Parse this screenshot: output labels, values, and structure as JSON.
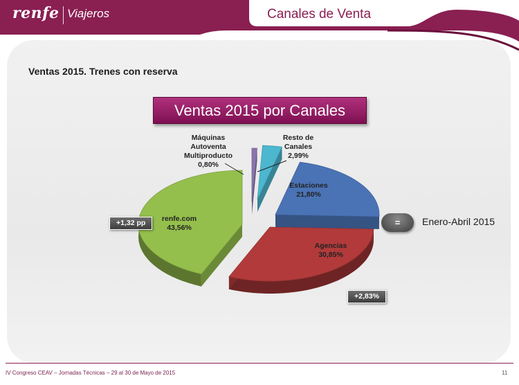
{
  "header": {
    "brand": "renfe",
    "sub_brand": "Viajeros",
    "section_title": "Canales de Venta"
  },
  "subtitle": "Ventas 2015. Trenes con reserva",
  "chart_data": {
    "type": "pie",
    "title": "Ventas 2015 por Canales",
    "slices": [
      {
        "label_lines": [
          "Estaciones",
          "21,80%"
        ],
        "value": 21.8,
        "color": "#4a73b6"
      },
      {
        "label_lines": [
          "Agencias",
          "30,85%"
        ],
        "value": 30.85,
        "color": "#b23a3a"
      },
      {
        "label_lines": [
          "renfe.com",
          "43,56%"
        ],
        "value": 43.56,
        "color": "#94bf4c"
      },
      {
        "label_lines": [
          "Máquinas",
          "Autoventa",
          "Multiproducto",
          "0,80%"
        ],
        "value": 0.8,
        "color": "#8b74ad"
      },
      {
        "label_lines": [
          "Resto de",
          "Canales",
          "2,99%"
        ],
        "value": 2.99,
        "color": "#4cb7cf"
      }
    ],
    "annotations": {
      "renfe_com_change": "+1,32 pp",
      "agencias_change": "+2,83%",
      "estaciones_change_symbol": "="
    },
    "legend_note": "Enero-Abril 2015"
  },
  "footer": {
    "text": "IV Congreso CEAV – Jornadas Técnicas – 29 al 30 de Mayo de 2015",
    "page": "11"
  }
}
